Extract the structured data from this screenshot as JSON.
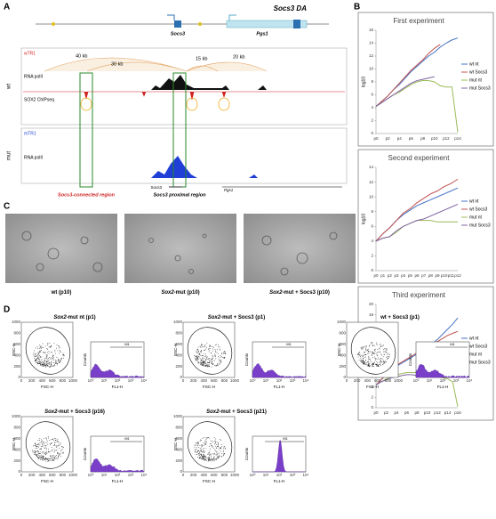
{
  "panel_labels": [
    "A",
    "B",
    "C",
    "D"
  ],
  "panel_a": {
    "title": "Socs3 DA",
    "genes": [
      "Socs3",
      "Pgs1"
    ],
    "conditions": [
      "wt",
      "mut"
    ],
    "wt_tracks": [
      "wTR1",
      "RNA polII",
      "SOX2 ChIPseq"
    ],
    "mut_tracks": [
      "mTR1",
      "RNA polII"
    ],
    "distances": [
      "40 kb",
      "30 kb",
      "15 kb",
      "20 kb"
    ],
    "bottom_genes": [
      "Socs3",
      "Pgs1"
    ],
    "regions": [
      "Socs3-connected region",
      "Socs3 proximal region"
    ]
  },
  "chart_data": [
    {
      "type": "line",
      "title": "First experiment",
      "y_label": "log10",
      "categories": [
        "p0",
        null,
        "p2",
        null,
        "p4",
        null,
        "p6",
        null,
        "p8",
        null,
        "p10",
        null,
        "p12",
        null,
        "p14"
      ],
      "ylim": [
        0,
        16
      ],
      "yticks": [
        0,
        2,
        4,
        6,
        8,
        10,
        12,
        14,
        16
      ],
      "series": [
        {
          "name": "wt nt",
          "color": "#4472c4",
          "values": [
            4.2,
            5,
            5.8,
            6.8,
            7.6,
            8.6,
            9.6,
            10.4,
            11.2,
            12,
            12.6,
            13.4,
            14,
            14.5,
            14.8
          ]
        },
        {
          "name": "wt Socs3",
          "color": "#c0504d",
          "values": [
            4.2,
            5,
            5.8,
            6.8,
            7.8,
            8.8,
            9.8,
            10.6,
            11.4,
            12.4,
            13.2,
            13.8,
            null,
            null,
            null
          ]
        },
        {
          "name": "mut nt",
          "color": "#9bbb59",
          "values": [
            4.2,
            4.8,
            5.4,
            6,
            6.4,
            7,
            7.6,
            8,
            8.2,
            8.2,
            8,
            7.4,
            7.2,
            7.2,
            0.2
          ]
        },
        {
          "name": "mut Socs3",
          "color": "#8064a2",
          "values": [
            4.2,
            4.8,
            5.4,
            6,
            6.6,
            7.2,
            7.8,
            8.2,
            8.4,
            8.6,
            8.8,
            null,
            null,
            null,
            null
          ]
        }
      ]
    },
    {
      "type": "line",
      "title": "Second experiment",
      "y_label": "log10",
      "categories": [
        "p0",
        "p1",
        "p2",
        "p3",
        "p4",
        "p5",
        "p6",
        "p7",
        "p8",
        "p9",
        "p10",
        "p11",
        "p12"
      ],
      "ylim": [
        0,
        14
      ],
      "yticks": [
        0,
        2,
        4,
        6,
        8,
        10,
        12,
        14
      ],
      "series": [
        {
          "name": "wt nt",
          "color": "#4472c4",
          "values": [
            4,
            5,
            5.8,
            6.8,
            7.6,
            8.2,
            8.8,
            9.2,
            9.6,
            10,
            10.4,
            10.8,
            11.2
          ]
        },
        {
          "name": "wt Socs3",
          "color": "#c0504d",
          "values": [
            4,
            5,
            5.8,
            6.8,
            7.8,
            8.4,
            9.2,
            9.8,
            10.4,
            10.8,
            11.4,
            11.8,
            12.4
          ]
        },
        {
          "name": "mut nt",
          "color": "#9bbb59",
          "values": [
            4,
            4.4,
            4.6,
            5.2,
            6,
            6.4,
            6.8,
            6.8,
            6.8,
            6.6,
            6.6,
            6.6,
            6.6
          ]
        },
        {
          "name": "mut Socs3",
          "color": "#8064a2",
          "values": [
            4,
            4.4,
            4.6,
            5.4,
            6,
            6.4,
            6.8,
            7,
            7.4,
            7.8,
            8.2,
            8.6,
            9
          ]
        }
      ]
    },
    {
      "type": "line",
      "title": "Third experiment",
      "y_label": "log10",
      "categories": [
        "p0",
        null,
        "p2",
        null,
        "p4",
        null,
        "p6",
        null,
        "p8",
        null,
        "p10",
        null,
        "p12",
        null,
        "p14",
        null,
        "p16"
      ],
      "ylim": [
        0,
        20
      ],
      "yticks": [
        0,
        2,
        4,
        6,
        8,
        10,
        12,
        14,
        16,
        18,
        20
      ],
      "series": [
        {
          "name": "wt nt",
          "color": "#4472c4",
          "values": [
            4.4,
            5.4,
            6.4,
            7.2,
            8,
            8.6,
            9.2,
            9.8,
            10.4,
            11,
            11.6,
            12.4,
            13.2,
            14.2,
            15.2,
            16.2,
            17.4
          ]
        },
        {
          "name": "wt Socs3",
          "color": "#c0504d",
          "values": [
            4.4,
            5.4,
            6.6,
            7.4,
            8.2,
            8.8,
            9.4,
            10,
            10.6,
            11,
            11.6,
            12.2,
            12.8,
            13.4,
            14,
            14.4,
            14.8
          ]
        },
        {
          "name": "mut nt",
          "color": "#9bbb59",
          "values": [
            4.4,
            5,
            5.6,
            6,
            6.4,
            6.6,
            6.8,
            6.8,
            6.8,
            6.8,
            6.6,
            6.4,
            6,
            5.8,
            5.6,
            5,
            0.2
          ]
        },
        {
          "name": "mut Socs3",
          "color": "#8064a2",
          "values": [
            4.4,
            5,
            5.4,
            5.8,
            6,
            6.2,
            6.4,
            6.4,
            6.2,
            6,
            6,
            6.2,
            6.6,
            7.4,
            8.2,
            9,
            9.8
          ]
        }
      ]
    }
  ],
  "panel_c": [
    {
      "gene": "",
      "rest": "wt (p10)"
    },
    {
      "gene": "Sox2",
      "rest": "-mut (p10)"
    },
    {
      "gene": "Sox2",
      "rest": "-mut + Socs3 (p10)"
    }
  ],
  "panel_d": {
    "plots": [
      {
        "gene": "Sox2",
        "rest": "-mut nt (p1)"
      },
      {
        "gene": "Sox2",
        "rest": "-mut + Socs3 (p1)"
      },
      {
        "gene": "",
        "rest": "wt + Socs3 (p1)"
      },
      {
        "gene": "Sox2",
        "rest": "-mut + Socs3 (p16)"
      },
      {
        "gene": "Sox2",
        "rest": "-mut + Socs3 (p21)"
      }
    ],
    "scatter_x": "FSC-H",
    "scatter_y": "SSC-H",
    "hist_x": "FL1-H",
    "hist_y": "Counts",
    "marker": "M1",
    "scatter_ticks": [
      "0",
      "200",
      "400",
      "600",
      "800",
      "1000"
    ],
    "hist_ticks": [
      "10⁰",
      "10¹",
      "10²",
      "10³",
      "10⁴"
    ]
  }
}
